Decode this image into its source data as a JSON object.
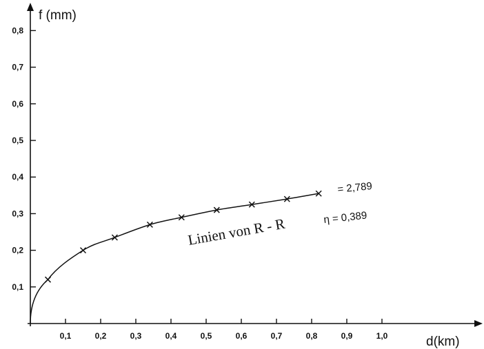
{
  "chart_data": {
    "type": "line",
    "title": "",
    "xlabel": "d(km)",
    "ylabel": "f (mm)",
    "xlim": [
      0,
      1.25
    ],
    "ylim": [
      0,
      0.85
    ],
    "x_ticks": [
      "0,1",
      "0,2",
      "0,3",
      "0,4",
      "0,5",
      "0,6",
      "0,7",
      "0,8",
      "0,9",
      "1,0"
    ],
    "x_tick_values": [
      0.1,
      0.2,
      0.3,
      0.4,
      0.5,
      0.6,
      0.7,
      0.8,
      0.9,
      1.0
    ],
    "y_ticks": [
      "0,1",
      "0,2",
      "0,3",
      "0,4",
      "0,5",
      "0,6",
      "0,7",
      "0,8"
    ],
    "y_tick_values": [
      0.1,
      0.2,
      0.3,
      0.4,
      0.5,
      0.6,
      0.7,
      0.8
    ],
    "grid": false,
    "series": [
      {
        "label": "Linien von R - R",
        "marker": "x",
        "x": [
          0.05,
          0.15,
          0.24,
          0.34,
          0.43,
          0.53,
          0.63,
          0.73,
          0.82
        ],
        "y": [
          0.12,
          0.2,
          0.235,
          0.27,
          0.29,
          0.31,
          0.325,
          0.34,
          0.355
        ]
      }
    ],
    "annotations": [
      {
        "text": "= 2,789"
      },
      {
        "text": "η = 0,389"
      }
    ]
  }
}
